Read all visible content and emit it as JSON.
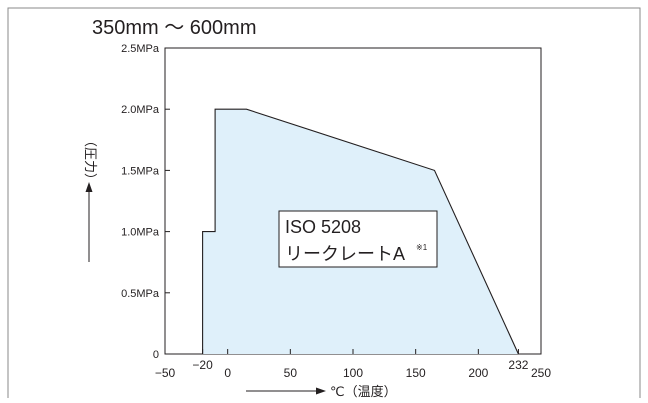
{
  "chart_data": {
    "type": "area",
    "title": "350mm ～ 600mm",
    "xlabel": "℃（温度）",
    "ylabel": "（圧力）",
    "xlim": [
      -50,
      250
    ],
    "ylim": [
      0,
      2.5
    ],
    "x_ticks": [
      {
        "value": -50,
        "label": "−50"
      },
      {
        "value": -20,
        "label": "−20"
      },
      {
        "value": 0,
        "label": "0"
      },
      {
        "value": 50,
        "label": "50"
      },
      {
        "value": 100,
        "label": "100"
      },
      {
        "value": 150,
        "label": "150"
      },
      {
        "value": 200,
        "label": "200"
      },
      {
        "value": 232,
        "label": "232"
      },
      {
        "value": 250,
        "label": "250"
      }
    ],
    "y_ticks": [
      {
        "value": 0,
        "label": "0"
      },
      {
        "value": 0.5,
        "label": "0.5MPa"
      },
      {
        "value": 1.0,
        "label": "1.0MPa"
      },
      {
        "value": 1.5,
        "label": "1.5MPa"
      },
      {
        "value": 2.0,
        "label": "2.0MPa"
      },
      {
        "value": 2.5,
        "label": "2.5MPa"
      }
    ],
    "series": [
      {
        "x": [
          -20,
          -20,
          -10,
          -10,
          15,
          165,
          232
        ],
        "y": [
          0,
          1.0,
          1.0,
          2.0,
          2.0,
          1.5,
          0
        ]
      }
    ],
    "annotations": [
      {
        "line1": "ISO 5208",
        "line2": "リークレートA",
        "superscript": "※1"
      }
    ],
    "fill_color": "#dff0fa",
    "line_color": "#231f20",
    "grid": false,
    "legend": "none"
  }
}
